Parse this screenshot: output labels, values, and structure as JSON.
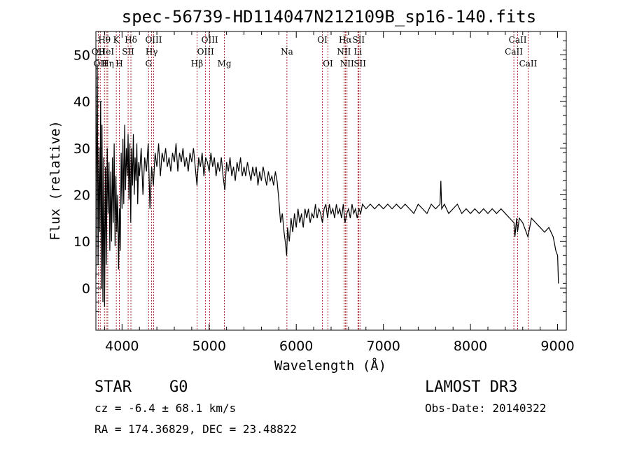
{
  "chart_data": {
    "type": "line",
    "title": "spec-56739-HD114047N212109B_sp16-140.fits",
    "xlabel": "Wavelength (Å)",
    "ylabel": "Flux (relative)",
    "xlim": [
      3700,
      9100
    ],
    "ylim": [
      -9,
      55
    ],
    "xticks": [
      4000,
      5000,
      6000,
      7000,
      8000,
      9000
    ],
    "yticks": [
      0,
      10,
      20,
      30,
      40,
      50
    ],
    "series": [
      {
        "name": "flux",
        "points": [
          [
            3700,
            2
          ],
          [
            3715,
            48
          ],
          [
            3725,
            5
          ],
          [
            3735,
            30
          ],
          [
            3745,
            12
          ],
          [
            3755,
            40
          ],
          [
            3762,
            0
          ],
          [
            3770,
            35
          ],
          [
            3780,
            -3
          ],
          [
            3790,
            28
          ],
          [
            3800,
            -4
          ],
          [
            3810,
            26
          ],
          [
            3820,
            5
          ],
          [
            3830,
            30
          ],
          [
            3840,
            16
          ],
          [
            3850,
            27
          ],
          [
            3860,
            8
          ],
          [
            3870,
            25
          ],
          [
            3880,
            10
          ],
          [
            3890,
            28
          ],
          [
            3900,
            14
          ],
          [
            3910,
            31
          ],
          [
            3920,
            9
          ],
          [
            3930,
            24
          ],
          [
            3940,
            12
          ],
          [
            3950,
            20
          ],
          [
            3960,
            4
          ],
          [
            3970,
            17
          ],
          [
            3980,
            8
          ],
          [
            3990,
            29
          ],
          [
            4000,
            17
          ],
          [
            4010,
            32
          ],
          [
            4020,
            18
          ],
          [
            4030,
            35
          ],
          [
            4040,
            21
          ],
          [
            4050,
            30
          ],
          [
            4060,
            24
          ],
          [
            4070,
            33
          ],
          [
            4080,
            19
          ],
          [
            4090,
            31
          ],
          [
            4100,
            14
          ],
          [
            4110,
            30
          ],
          [
            4120,
            22
          ],
          [
            4130,
            33
          ],
          [
            4140,
            20
          ],
          [
            4150,
            28
          ],
          [
            4160,
            23
          ],
          [
            4170,
            31
          ],
          [
            4180,
            18
          ],
          [
            4190,
            27
          ],
          [
            4200,
            24
          ],
          [
            4220,
            30
          ],
          [
            4240,
            20
          ],
          [
            4260,
            28
          ],
          [
            4280,
            25
          ],
          [
            4300,
            31
          ],
          [
            4320,
            17
          ],
          [
            4340,
            26
          ],
          [
            4360,
            22
          ],
          [
            4380,
            29
          ],
          [
            4400,
            26
          ],
          [
            4420,
            31
          ],
          [
            4440,
            24
          ],
          [
            4460,
            29
          ],
          [
            4480,
            27
          ],
          [
            4500,
            30
          ],
          [
            4520,
            26
          ],
          [
            4540,
            28
          ],
          [
            4560,
            25
          ],
          [
            4580,
            29
          ],
          [
            4600,
            27
          ],
          [
            4620,
            31
          ],
          [
            4640,
            25
          ],
          [
            4660,
            29
          ],
          [
            4680,
            27
          ],
          [
            4700,
            30
          ],
          [
            4720,
            26
          ],
          [
            4740,
            28
          ],
          [
            4760,
            25
          ],
          [
            4780,
            29
          ],
          [
            4800,
            27
          ],
          [
            4820,
            30
          ],
          [
            4840,
            26
          ],
          [
            4860,
            22
          ],
          [
            4880,
            28
          ],
          [
            4900,
            26
          ],
          [
            4920,
            29
          ],
          [
            4940,
            24
          ],
          [
            4960,
            28
          ],
          [
            4980,
            27
          ],
          [
            5000,
            25
          ],
          [
            5020,
            29
          ],
          [
            5040,
            26
          ],
          [
            5060,
            28
          ],
          [
            5080,
            24
          ],
          [
            5100,
            27
          ],
          [
            5120,
            25
          ],
          [
            5140,
            28
          ],
          [
            5160,
            24
          ],
          [
            5180,
            21
          ],
          [
            5200,
            27
          ],
          [
            5220,
            25
          ],
          [
            5240,
            28
          ],
          [
            5260,
            24
          ],
          [
            5280,
            26
          ],
          [
            5300,
            23
          ],
          [
            5320,
            27
          ],
          [
            5340,
            25
          ],
          [
            5360,
            28
          ],
          [
            5380,
            24
          ],
          [
            5400,
            26
          ],
          [
            5420,
            24
          ],
          [
            5440,
            27
          ],
          [
            5460,
            25
          ],
          [
            5480,
            23
          ],
          [
            5500,
            26
          ],
          [
            5520,
            24
          ],
          [
            5540,
            26
          ],
          [
            5560,
            22
          ],
          [
            5580,
            25
          ],
          [
            5600,
            23
          ],
          [
            5620,
            26
          ],
          [
            5640,
            24
          ],
          [
            5660,
            22
          ],
          [
            5680,
            25
          ],
          [
            5700,
            23
          ],
          [
            5720,
            24
          ],
          [
            5740,
            22
          ],
          [
            5760,
            25
          ],
          [
            5780,
            23
          ],
          [
            5800,
            19
          ],
          [
            5820,
            14
          ],
          [
            5840,
            16
          ],
          [
            5860,
            12
          ],
          [
            5880,
            9
          ],
          [
            5890,
            7
          ],
          [
            5900,
            13
          ],
          [
            5920,
            10
          ],
          [
            5940,
            15
          ],
          [
            5960,
            12
          ],
          [
            5980,
            16
          ],
          [
            6000,
            13
          ],
          [
            6020,
            17
          ],
          [
            6040,
            14
          ],
          [
            6060,
            16
          ],
          [
            6080,
            13
          ],
          [
            6100,
            17
          ],
          [
            6120,
            15
          ],
          [
            6140,
            17
          ],
          [
            6160,
            14
          ],
          [
            6180,
            16
          ],
          [
            6200,
            15
          ],
          [
            6220,
            18
          ],
          [
            6240,
            15
          ],
          [
            6260,
            17
          ],
          [
            6280,
            16
          ],
          [
            6300,
            14
          ],
          [
            6320,
            17
          ],
          [
            6340,
            18
          ],
          [
            6360,
            15
          ],
          [
            6380,
            18
          ],
          [
            6400,
            16
          ],
          [
            6420,
            17
          ],
          [
            6440,
            15
          ],
          [
            6460,
            18
          ],
          [
            6480,
            16
          ],
          [
            6500,
            17
          ],
          [
            6520,
            15
          ],
          [
            6540,
            18
          ],
          [
            6560,
            14
          ],
          [
            6580,
            16
          ],
          [
            6600,
            17
          ],
          [
            6620,
            15
          ],
          [
            6640,
            18
          ],
          [
            6660,
            16
          ],
          [
            6680,
            17
          ],
          [
            6700,
            15
          ],
          [
            6720,
            17
          ],
          [
            6740,
            16
          ],
          [
            6760,
            18
          ],
          [
            6800,
            17
          ],
          [
            6850,
            18
          ],
          [
            6900,
            17
          ],
          [
            6950,
            18
          ],
          [
            7000,
            17
          ],
          [
            7050,
            18
          ],
          [
            7100,
            17
          ],
          [
            7150,
            18
          ],
          [
            7200,
            17
          ],
          [
            7250,
            18
          ],
          [
            7300,
            17
          ],
          [
            7350,
            16
          ],
          [
            7400,
            18
          ],
          [
            7450,
            17
          ],
          [
            7500,
            16
          ],
          [
            7550,
            18
          ],
          [
            7600,
            17
          ],
          [
            7650,
            18
          ],
          [
            7660,
            23
          ],
          [
            7670,
            17
          ],
          [
            7700,
            18
          ],
          [
            7750,
            16
          ],
          [
            7800,
            17
          ],
          [
            7850,
            18
          ],
          [
            7900,
            16
          ],
          [
            7950,
            17
          ],
          [
            8000,
            16
          ],
          [
            8050,
            17
          ],
          [
            8100,
            16
          ],
          [
            8150,
            17
          ],
          [
            8200,
            16
          ],
          [
            8250,
            17
          ],
          [
            8300,
            16
          ],
          [
            8350,
            17
          ],
          [
            8400,
            16
          ],
          [
            8450,
            15
          ],
          [
            8500,
            14
          ],
          [
            8510,
            11
          ],
          [
            8530,
            15
          ],
          [
            8540,
            12
          ],
          [
            8560,
            15
          ],
          [
            8600,
            14
          ],
          [
            8660,
            11
          ],
          [
            8700,
            15
          ],
          [
            8750,
            14
          ],
          [
            8800,
            13
          ],
          [
            8850,
            12
          ],
          [
            8900,
            13
          ],
          [
            8950,
            11
          ],
          [
            8980,
            8
          ],
          [
            9000,
            7
          ],
          [
            9010,
            1
          ]
        ]
      }
    ],
    "line_markers": [
      {
        "label": "Hθ",
        "wavelength": 3798,
        "row": 0
      },
      {
        "label": "OII",
        "wavelength": 3727,
        "row": 1
      },
      {
        "label": "HeI",
        "wavelength": 3820,
        "row": 1
      },
      {
        "label": "OII",
        "wavelength": 3750,
        "row": 2
      },
      {
        "label": "Hη",
        "wavelength": 3836,
        "row": 2
      },
      {
        "label": "K",
        "wavelength": 3934,
        "row": 0
      },
      {
        "label": "H",
        "wavelength": 3969,
        "row": 2
      },
      {
        "label": "SII",
        "wavelength": 4070,
        "row": 1
      },
      {
        "label": "Hδ",
        "wavelength": 4102,
        "row": 0
      },
      {
        "label": "OIII",
        "wavelength": 4363,
        "row": 0
      },
      {
        "label": "Hγ",
        "wavelength": 4340,
        "row": 1
      },
      {
        "label": "G",
        "wavelength": 4305,
        "row": 2
      },
      {
        "label": "Hβ",
        "wavelength": 4861,
        "row": 2
      },
      {
        "label": "OIII",
        "wavelength": 5007,
        "row": 0
      },
      {
        "label": "OIII",
        "wavelength": 4959,
        "row": 1
      },
      {
        "label": "Mg",
        "wavelength": 5175,
        "row": 2
      },
      {
        "label": "Na",
        "wavelength": 5893,
        "row": 1
      },
      {
        "label": "OI",
        "wavelength": 6300,
        "row": 0
      },
      {
        "label": "OI",
        "wavelength": 6364,
        "row": 2
      },
      {
        "label": "Hα",
        "wavelength": 6563,
        "row": 0
      },
      {
        "label": "NII",
        "wavelength": 6548,
        "row": 1
      },
      {
        "label": "NII",
        "wavelength": 6583,
        "row": 2
      },
      {
        "label": "SII",
        "wavelength": 6716,
        "row": 0
      },
      {
        "label": "Li",
        "wavelength": 6708,
        "row": 1
      },
      {
        "label": "SII",
        "wavelength": 6731,
        "row": 2
      },
      {
        "label": "CaII",
        "wavelength": 8542,
        "row": 0
      },
      {
        "label": "CaII",
        "wavelength": 8498,
        "row": 1
      },
      {
        "label": "CaII",
        "wavelength": 8662,
        "row": 2
      }
    ]
  },
  "info": {
    "object_type": "STAR",
    "subclass": "G0",
    "survey": "LAMOST DR3",
    "cz": "cz = -6.4 ± 68.1 km/s",
    "obs_date": "Obs-Date: 20140322",
    "coords": "RA = 174.36829, DEC =  23.48822"
  },
  "colors": {
    "spectrum": "#000000",
    "marker": "#8b0000",
    "axis": "#000000"
  }
}
